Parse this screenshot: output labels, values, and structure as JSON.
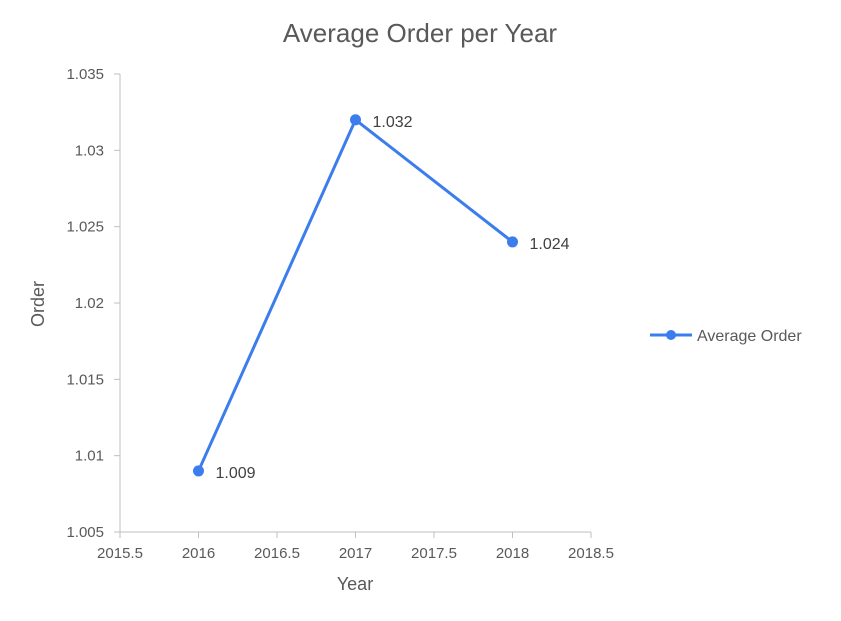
{
  "chart_data": {
    "type": "scatter",
    "title": "Average Order per Year",
    "xlabel": "Year",
    "ylabel": "Order",
    "xlim": [
      2015.5,
      2018.5
    ],
    "ylim": [
      1.005,
      1.035
    ],
    "x_ticks": [
      "2015.5",
      "2016",
      "2016.5",
      "2017",
      "2017.5",
      "2018",
      "2018.5"
    ],
    "y_ticks": [
      "1.005",
      "1.01",
      "1.015",
      "1.02",
      "1.025",
      "1.03",
      "1.035"
    ],
    "grid": false,
    "legend_position": "right",
    "series": [
      {
        "name": "Average Order",
        "color": "#3B7DED",
        "x": [
          2016,
          2017,
          2018
        ],
        "y": [
          1.009,
          1.032,
          1.024
        ],
        "data_labels": [
          "1.009",
          "1.032",
          "1.024"
        ]
      }
    ]
  },
  "colors": {
    "axis": "#BFBFBF",
    "text": "#595959"
  }
}
